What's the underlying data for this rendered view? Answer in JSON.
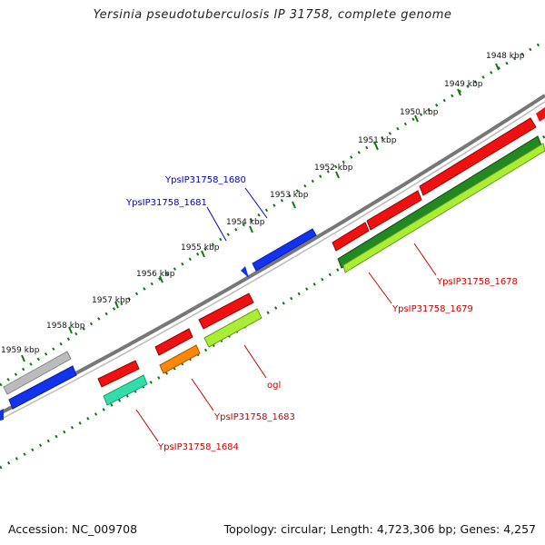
{
  "title": "Yersinia pseudotuberculosis IP 31758, complete genome",
  "footer": {
    "accession": "Accession: NC_009708",
    "summary": "Topology: circular; Length: 4,723,306 bp; Genes: 4,257"
  },
  "ticks": [
    "1948 kbp",
    "1949 kbp",
    "1950 kbp",
    "1951 kbp",
    "1952 kbp",
    "1953 kbp",
    "1954 kbp",
    "1955 kbp",
    "1956 kbp",
    "1957 kbp",
    "1958 kbp",
    "1959 kbp"
  ],
  "gene_labels": {
    "g1680": "YpsIP31758_1680",
    "g1681": "YpsIP31758_1681",
    "g1678": "YpsIP31758_1678",
    "g1679": "YpsIP31758_1679",
    "ogl": "ogl",
    "g1683": "YpsIP31758_1683",
    "g1684": "YpsIP31758_1684"
  },
  "colors": {
    "red": "#ee1111",
    "blue": "#1133ee",
    "gray": "#bbbbbb",
    "dark_green": "#228822",
    "lime": "#aaee33",
    "orange": "#ff8800",
    "mint": "#33ddaa",
    "backbone": "#777777",
    "tick_green": "#117711",
    "label_blue": "#0000cc",
    "label_red": "#cc0000"
  }
}
